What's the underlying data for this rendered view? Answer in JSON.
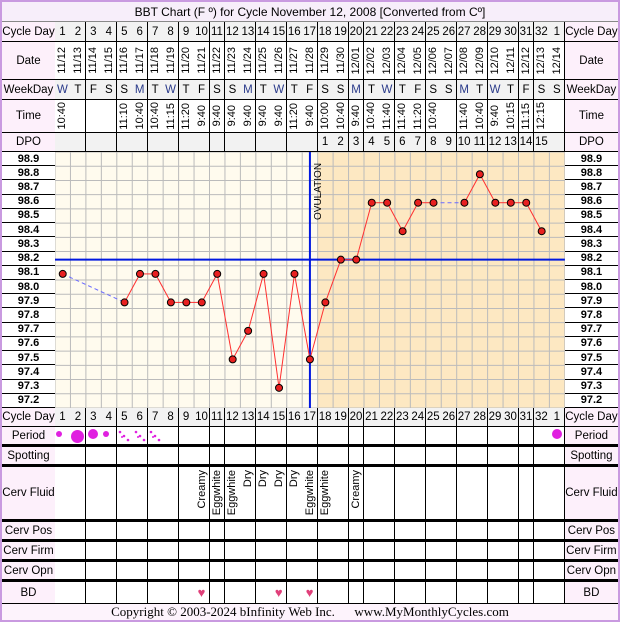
{
  "title": "BBT Chart (F º) for Cycle November 12, 2008  [Converted from Cº]",
  "row_labels": {
    "cycle_day": "Cycle Day",
    "date": "Date",
    "weekday": "WeekDay",
    "time": "Time",
    "dpo": "DPO",
    "period": "Period",
    "spotting": "Spotting",
    "cerv_fluid": "Cerv Fluid",
    "cerv_pos": "Cerv Pos",
    "cerv_firm": "Cerv Firm",
    "cerv_opn": "Cerv Opn",
    "bd": "BD"
  },
  "cycle_days": [
    "1",
    "2",
    "3",
    "4",
    "5",
    "6",
    "7",
    "8",
    "9",
    "10",
    "11",
    "12",
    "13",
    "14",
    "15",
    "16",
    "17",
    "18",
    "19",
    "20",
    "21",
    "22",
    "23",
    "24",
    "25",
    "26",
    "27",
    "28",
    "29",
    "30",
    "31",
    "32",
    "1"
  ],
  "dates": [
    "11/12",
    "11/13",
    "11/14",
    "11/15",
    "11/16",
    "11/17",
    "11/18",
    "11/19",
    "11/20",
    "11/21",
    "11/22",
    "11/23",
    "11/24",
    "11/25",
    "11/26",
    "11/27",
    "11/28",
    "11/29",
    "11/30",
    "12/01",
    "12/02",
    "12/03",
    "12/04",
    "12/05",
    "12/06",
    "12/07",
    "12/08",
    "12/09",
    "12/10",
    "12/11",
    "12/12",
    "12/13",
    "12/14"
  ],
  "weekdays": [
    "W",
    "T",
    "F",
    "S",
    "S",
    "M",
    "T",
    "W",
    "T",
    "F",
    "S",
    "S",
    "M",
    "T",
    "W",
    "T",
    "F",
    "S",
    "S",
    "M",
    "T",
    "W",
    "T",
    "F",
    "S",
    "S",
    "M",
    "T",
    "W",
    "T",
    "F",
    "S",
    "S"
  ],
  "times": [
    "10:40",
    "",
    "",
    "",
    "11:10",
    "10:40",
    "10:40",
    "11:15",
    "11:20",
    "9:40",
    "9:40",
    "9:40",
    "9:40",
    "9:40",
    "9:40",
    "11:20",
    "9:40",
    "10:00",
    "10:40",
    "9:40",
    "10:40",
    "11:40",
    "11:40",
    "11:20",
    "10:40",
    "",
    "11:40",
    "10:40",
    "9:40",
    "10:15",
    "11:15",
    "12:15",
    ""
  ],
  "dpo": [
    "",
    "",
    "",
    "",
    "",
    "",
    "",
    "",
    "",
    "",
    "",
    "",
    "",
    "",
    "",
    "",
    "",
    "1",
    "2",
    "3",
    "4",
    "5",
    "6",
    "7",
    "8",
    "9",
    "10",
    "11",
    "12",
    "13",
    "14",
    "15",
    ""
  ],
  "period": [
    "small",
    "heavy",
    "medium",
    "small",
    "spot",
    "spot",
    "spot",
    "",
    "",
    "",
    "",
    "",
    "",
    "",
    "",
    "",
    "",
    "",
    "",
    "",
    "",
    "",
    "",
    "",
    "",
    "",
    "",
    "",
    "",
    "",
    "",
    "",
    "medium"
  ],
  "cerv_fluid": [
    "",
    "",
    "",
    "",
    "",
    "",
    "",
    "",
    "",
    "Creamy",
    "Eggwhite",
    "Eggwhite",
    "Dry",
    "Dry",
    "Dry",
    "Dry",
    "Eggwhite",
    "Eggwhite",
    "",
    "Creamy",
    "",
    "",
    "",
    "",
    "",
    "",
    "",
    "",
    "",
    "",
    "",
    "",
    ""
  ],
  "bd": [
    false,
    false,
    false,
    false,
    false,
    false,
    false,
    false,
    false,
    true,
    false,
    false,
    false,
    false,
    true,
    false,
    true,
    false,
    false,
    false,
    false,
    false,
    false,
    false,
    false,
    false,
    false,
    false,
    false,
    false,
    false,
    false,
    false
  ],
  "chart_data": {
    "type": "line",
    "title": "BBT Chart (F º) for Cycle November 12, 2008  [Converted from Cº]",
    "x": [
      1,
      2,
      3,
      4,
      5,
      6,
      7,
      8,
      9,
      10,
      11,
      12,
      13,
      14,
      15,
      16,
      17,
      18,
      19,
      20,
      21,
      22,
      23,
      24,
      25,
      26,
      27,
      28,
      29,
      30,
      31,
      32
    ],
    "temps": [
      98.1,
      null,
      null,
      null,
      97.9,
      98.1,
      98.1,
      97.9,
      97.9,
      97.9,
      98.1,
      97.5,
      97.7,
      98.1,
      97.3,
      98.1,
      97.5,
      97.9,
      98.2,
      98.2,
      98.6,
      98.6,
      98.4,
      98.6,
      98.6,
      null,
      98.6,
      98.8,
      98.6,
      98.6,
      98.6,
      98.4
    ],
    "yticks": [
      "98.9",
      "98.8",
      "98.7",
      "98.6",
      "98.5",
      "98.4",
      "98.3",
      "98.2",
      "98.1",
      "98.0",
      "97.9",
      "97.8",
      "97.7",
      "97.6",
      "97.5",
      "97.4",
      "97.3",
      "97.2"
    ],
    "ylim": [
      97.2,
      98.9
    ],
    "coverline": 98.2,
    "ovulation_day": 17,
    "ovulation_label": "OVULATION",
    "grid": true,
    "colors": {
      "line": "#ff3030",
      "point": "#e82020",
      "coverline": "#0018e0",
      "gap": "#6a6aff",
      "follicular_bg": "#fffbee",
      "luteal_bg": "#fde8c2",
      "period": "#e020e0",
      "heart": "#e0407a"
    }
  },
  "footer": {
    "copyright": "Copyright © 2003-2024 bInfinity Web Inc.",
    "site": "www.MyMonthlyCycles.com"
  }
}
